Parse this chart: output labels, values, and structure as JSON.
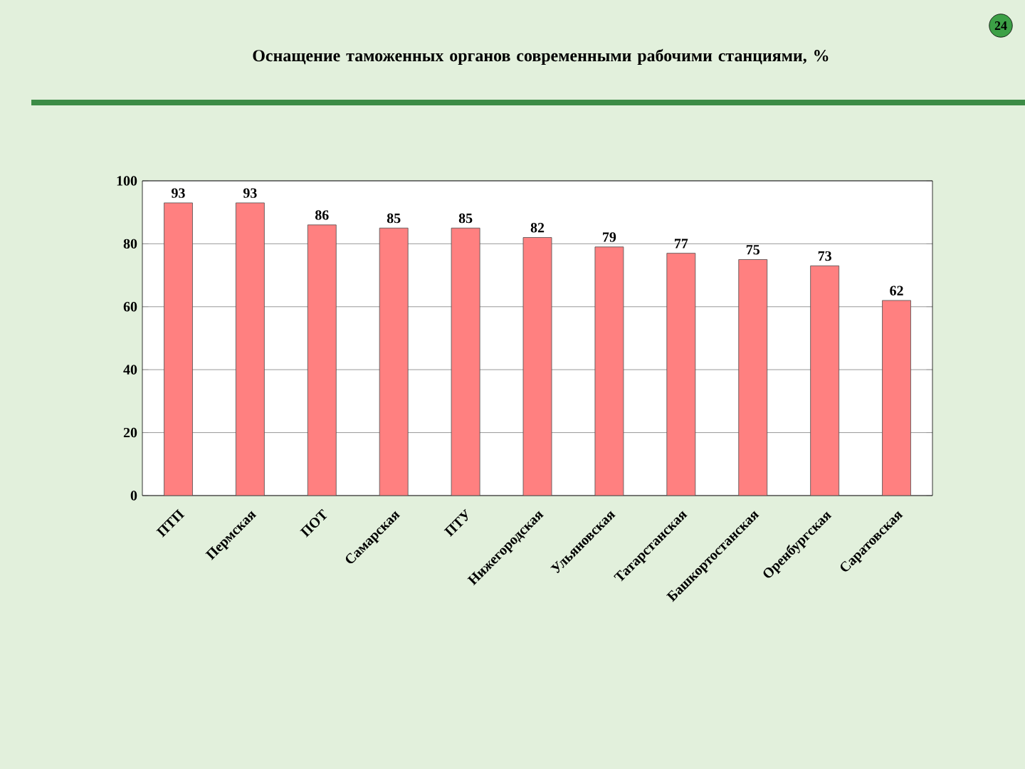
{
  "chart_data": {
    "type": "bar",
    "title": "Оснащение таможенных органов современными рабочими станциями, %",
    "categories": [
      "ПТП",
      "Пермская",
      "ПОТ",
      "Самарская",
      "ПТУ",
      "Нижегородская",
      "Ульяновская",
      "Татарстанская",
      "Башкортостанская",
      "Оренбургская",
      "Саратовская"
    ],
    "values": [
      93,
      93,
      86,
      85,
      85,
      82,
      79,
      77,
      75,
      73,
      62
    ],
    "color": "#ff8080",
    "ylim": [
      0,
      100
    ],
    "yticks": [
      0,
      20,
      40,
      60,
      80,
      100
    ],
    "grid": "y",
    "data_labels": true,
    "annotations": [
      "24"
    ]
  }
}
